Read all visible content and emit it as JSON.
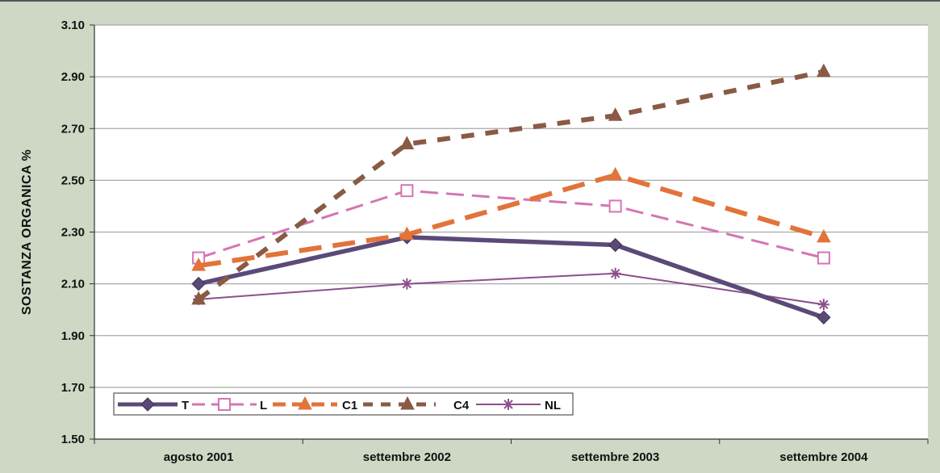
{
  "chart_data": {
    "type": "line",
    "ylabel": "SOSTANZA ORGANICA %",
    "xlabel": "",
    "categories": [
      "agosto 2001",
      "settembre 2002",
      "settembre 2003",
      "settembre 2004"
    ],
    "ylim": [
      1.5,
      3.1
    ],
    "yticks": [
      "1.50",
      "1.70",
      "1.90",
      "2.10",
      "2.30",
      "2.50",
      "2.70",
      "2.90",
      "3.10"
    ],
    "grid": true,
    "legend_position": "bottom-left",
    "series": [
      {
        "name": "T",
        "values": [
          2.1,
          2.28,
          2.25,
          1.97
        ],
        "color": "#5b4a78",
        "marker": "diamond"
      },
      {
        "name": "L",
        "values": [
          2.2,
          2.46,
          2.4,
          2.2
        ],
        "color": "#d475b2",
        "marker": "square"
      },
      {
        "name": "C1",
        "values": [
          2.17,
          2.29,
          2.52,
          2.28
        ],
        "color": "#e2733a",
        "marker": "triangle"
      },
      {
        "name": "C4",
        "values": [
          2.04,
          2.64,
          2.75,
          2.92
        ],
        "color": "#8a5a44",
        "marker": "triangle"
      },
      {
        "name": "NL",
        "values": [
          2.04,
          2.1,
          2.14,
          2.02
        ],
        "color": "#8c4f8c",
        "marker": "asterisk"
      }
    ]
  }
}
